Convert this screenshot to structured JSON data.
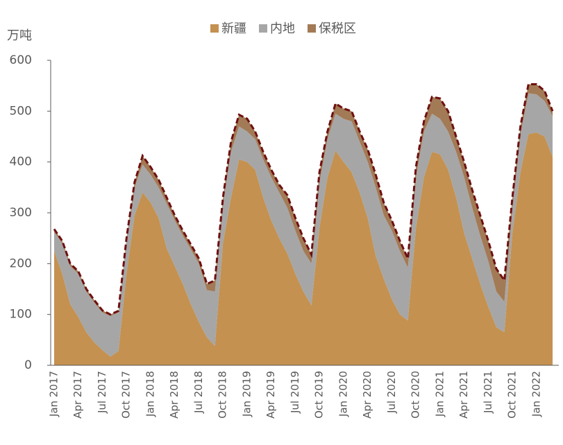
{
  "chart_data": {
    "type": "stacked_area",
    "y_label": "万吨",
    "categories": [
      "Jan 2017",
      null,
      null,
      "Apr 2017",
      null,
      null,
      "Jul 2017",
      null,
      null,
      "Oct 2017",
      null,
      null,
      "Jan 2018",
      null,
      null,
      "Apr 2018",
      null,
      null,
      "Jul 2018",
      null,
      null,
      "Oct 2018",
      null,
      null,
      "Jan 2019",
      null,
      null,
      "Apr 2019",
      null,
      null,
      "Jul 2019",
      null,
      null,
      "Oct 2019",
      null,
      null,
      "Jan 2020",
      null,
      null,
      "Apr 2020",
      null,
      null,
      "Jul 2020",
      null,
      null,
      "Oct 2020",
      null,
      null,
      "Jan 2021",
      null,
      null,
      "Apr 2021",
      null,
      null,
      "Jul 2021",
      null,
      null,
      "Oct 2021",
      null,
      null,
      "Jan 2022",
      null,
      null
    ],
    "series": [
      {
        "name": "新疆",
        "color": "#c49150",
        "values": [
          225,
          180,
          120,
          95,
          65,
          45,
          30,
          17,
          28,
          180,
          295,
          340,
          320,
          290,
          230,
          195,
          160,
          120,
          85,
          55,
          38,
          240,
          330,
          405,
          400,
          385,
          330,
          285,
          250,
          220,
          180,
          145,
          118,
          270,
          370,
          422,
          400,
          380,
          340,
          290,
          215,
          170,
          130,
          100,
          88,
          270,
          370,
          420,
          415,
          385,
          330,
          260,
          210,
          160,
          115,
          75,
          65,
          260,
          380,
          455,
          458,
          450,
          410
        ]
      },
      {
        "name": "内地",
        "color": "#a6a6a6",
        "values": [
          37,
          60,
          75,
          85,
          80,
          78,
          74,
          80,
          76,
          65,
          55,
          55,
          55,
          60,
          88,
          90,
          95,
          108,
          115,
          93,
          107,
          80,
          90,
          65,
          60,
          60,
          75,
          85,
          90,
          90,
          85,
          80,
          82,
          90,
          75,
          73,
          85,
          100,
          100,
          110,
          135,
          125,
          135,
          125,
          104,
          100,
          90,
          75,
          70,
          75,
          90,
          110,
          100,
          95,
          90,
          70,
          60,
          50,
          75,
          80,
          75,
          70,
          80
        ]
      },
      {
        "name": "保税区",
        "color": "#a37a56",
        "values": [
          6,
          5,
          5,
          5,
          5,
          5,
          4,
          3,
          3,
          5,
          10,
          17,
          15,
          15,
          12,
          10,
          10,
          10,
          10,
          12,
          22,
          10,
          20,
          23,
          25,
          15,
          15,
          15,
          15,
          25,
          25,
          25,
          18,
          20,
          15,
          20,
          20,
          20,
          20,
          25,
          25,
          25,
          20,
          20,
          18,
          20,
          20,
          33,
          40,
          40,
          30,
          30,
          35,
          40,
          40,
          45,
          42,
          20,
          15,
          18,
          20,
          20,
          10
        ]
      }
    ],
    "total_line": {
      "color": "#6e1010",
      "dashed": true
    },
    "ylim": [
      0,
      600
    ],
    "yticks": [
      0,
      100,
      200,
      300,
      400,
      500,
      600
    ],
    "legend": "top"
  }
}
